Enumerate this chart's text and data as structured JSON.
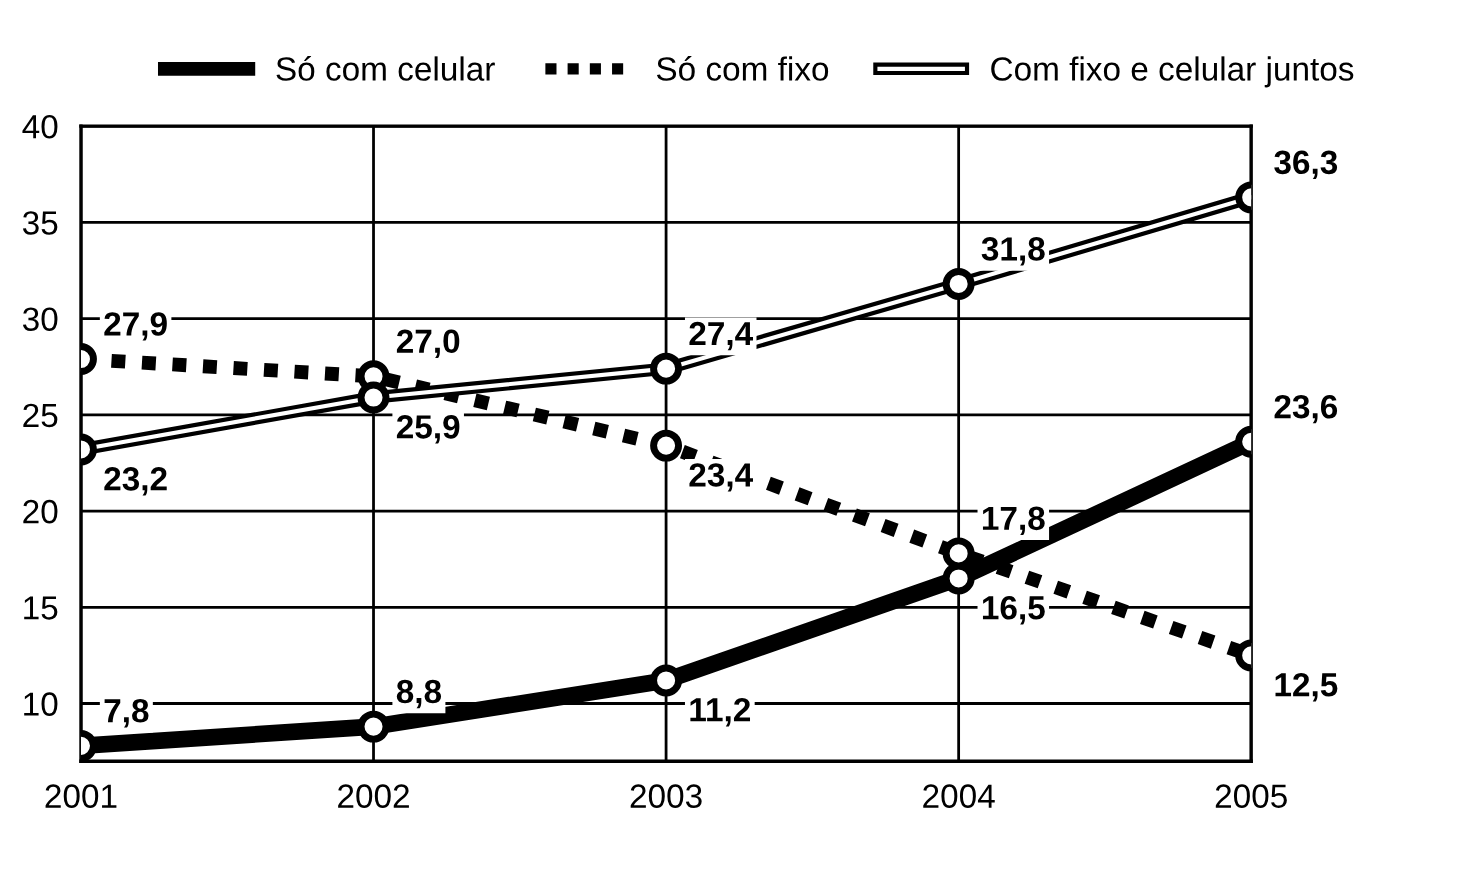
{
  "chart_data": {
    "type": "line",
    "x": [
      2001,
      2002,
      2003,
      2004,
      2005
    ],
    "xlim": [
      2001,
      2005
    ],
    "xticks": [
      2001,
      2002,
      2003,
      2004,
      2005
    ],
    "ylim": [
      7,
      40
    ],
    "yticks": [
      10,
      15,
      20,
      25,
      30,
      35,
      40
    ],
    "grid": true,
    "legend": "top",
    "marker": "circle",
    "series": [
      {
        "name": "Só com celular",
        "color": "#000000",
        "line_style": "solid",
        "values": [
          7.8,
          8.8,
          11.2,
          16.5,
          23.6
        ],
        "value_labels": [
          "7,8",
          "8,8",
          "11,2",
          "16,5",
          "23,6"
        ]
      },
      {
        "name": "Só com fixo",
        "color": "#000000",
        "line_style": "dotted",
        "values": [
          27.9,
          27.0,
          23.4,
          17.8,
          12.5
        ],
        "value_labels": [
          "27,9",
          "27,0",
          "23,4",
          "17,8",
          "12,5"
        ]
      },
      {
        "name": "Com fixo e celular juntos",
        "color": "#000000",
        "values": [
          23.2,
          25.9,
          27.4,
          31.8,
          36.3
        ],
        "value_labels": [
          "23,2",
          "25,9",
          "27,4",
          "31,8",
          "36,3"
        ]
      }
    ]
  }
}
